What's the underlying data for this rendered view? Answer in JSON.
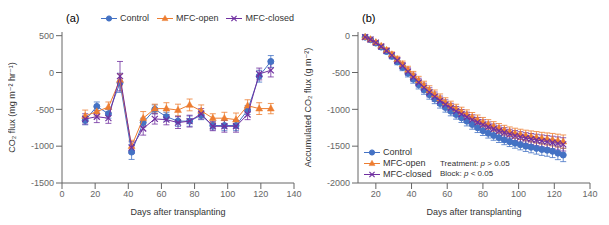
{
  "chart_data": [
    {
      "type": "line",
      "title": "(a)",
      "x_label": "Days after transplanting",
      "y_label": "CO₂ flux (mg m⁻² hr⁻¹)",
      "xlim": [
        0,
        140
      ],
      "ylim": [
        -1500,
        550
      ],
      "xticks": [
        0,
        20,
        40,
        60,
        80,
        100,
        120,
        140
      ],
      "yticks": [
        500,
        0,
        -500,
        -1000,
        -1500
      ],
      "grid": false,
      "legend": "upper right",
      "series": [
        {
          "name": "Control",
          "color": "#4472C4",
          "marker": "circle",
          "x": [
            14,
            21,
            28,
            35,
            42,
            49,
            56,
            63,
            70,
            77,
            84,
            91,
            98,
            105,
            112,
            119,
            126
          ],
          "values": [
            -650,
            -460,
            -560,
            -140,
            -1080,
            -680,
            -500,
            -600,
            -660,
            -660,
            -580,
            -720,
            -720,
            -720,
            -510,
            -50,
            150
          ],
          "errors": [
            60,
            60,
            60,
            130,
            100,
            60,
            60,
            60,
            70,
            70,
            60,
            60,
            70,
            70,
            60,
            80,
            80
          ]
        },
        {
          "name": "MFC-open",
          "color": "#ED7D31",
          "marker": "triangle",
          "x": [
            14,
            21,
            28,
            35,
            42,
            49,
            56,
            63,
            70,
            77,
            84,
            91,
            98,
            105,
            112,
            119,
            126
          ],
          "values": [
            -590,
            -530,
            -470,
            -100,
            -1000,
            -620,
            -490,
            -490,
            -510,
            -440,
            -520,
            -620,
            -620,
            -640,
            -450,
            -490,
            -490
          ],
          "errors": [
            80,
            60,
            70,
            80,
            80,
            90,
            60,
            80,
            80,
            80,
            80,
            60,
            80,
            90,
            80,
            80,
            70
          ]
        },
        {
          "name": "MFC-closed",
          "color": "#7030A0",
          "marker": "x",
          "x": [
            14,
            21,
            28,
            35,
            42,
            49,
            56,
            63,
            70,
            77,
            84,
            91,
            98,
            105,
            112,
            119,
            126
          ],
          "values": [
            -630,
            -600,
            -620,
            -50,
            -1020,
            -760,
            -630,
            -640,
            -680,
            -660,
            -560,
            -730,
            -730,
            -730,
            -570,
            -20,
            30
          ],
          "errors": [
            70,
            80,
            70,
            200,
            80,
            90,
            70,
            70,
            80,
            80,
            70,
            60,
            80,
            80,
            70,
            80,
            90
          ]
        }
      ]
    },
    {
      "type": "line",
      "title": "(b)",
      "x_label": "Days after transplanting",
      "y_label": "Accumulated CO₂ flux (g m⁻²)",
      "xlim": [
        10,
        140
      ],
      "ylim": [
        -2000,
        50
      ],
      "xticks": [
        20,
        40,
        60,
        80,
        100,
        120,
        140
      ],
      "yticks": [
        0,
        -500,
        -1000,
        -1500,
        -2000
      ],
      "grid": false,
      "legend": "lower left",
      "annotations": [
        "Treatment: p > 0.05",
        "Block: p < 0.05"
      ],
      "series": [
        {
          "name": "Control",
          "color": "#4472C4",
          "marker": "circle",
          "x": [
            14,
            17,
            20,
            23,
            26,
            29,
            32,
            35,
            38,
            41,
            44,
            47,
            50,
            53,
            56,
            59,
            62,
            65,
            68,
            71,
            74,
            77,
            80,
            83,
            86,
            89,
            92,
            95,
            98,
            101,
            104,
            107,
            110,
            113,
            116,
            119,
            122,
            125
          ],
          "values": [
            -20,
            -55,
            -100,
            -155,
            -215,
            -280,
            -355,
            -430,
            -510,
            -590,
            -665,
            -735,
            -800,
            -860,
            -920,
            -975,
            -1025,
            -1070,
            -1115,
            -1160,
            -1205,
            -1250,
            -1290,
            -1325,
            -1355,
            -1385,
            -1415,
            -1440,
            -1460,
            -1480,
            -1500,
            -1515,
            -1530,
            -1545,
            -1555,
            -1570,
            -1595,
            -1620
          ],
          "errors": [
            10,
            15,
            20,
            25,
            30,
            35,
            40,
            45,
            50,
            55,
            58,
            60,
            62,
            63,
            63,
            63,
            63,
            63,
            63,
            65,
            65,
            65,
            65,
            65,
            65,
            65,
            65,
            65,
            68,
            70,
            72,
            75,
            78,
            80,
            82,
            85,
            88,
            90
          ]
        },
        {
          "name": "MFC-open",
          "color": "#ED7D31",
          "marker": "triangle",
          "x": [
            14,
            17,
            20,
            23,
            26,
            29,
            32,
            35,
            38,
            41,
            44,
            47,
            50,
            53,
            56,
            59,
            62,
            65,
            68,
            71,
            74,
            77,
            80,
            83,
            86,
            89,
            92,
            95,
            98,
            101,
            104,
            107,
            110,
            113,
            116,
            119,
            122,
            125
          ],
          "values": [
            -18,
            -50,
            -90,
            -140,
            -195,
            -255,
            -320,
            -390,
            -465,
            -540,
            -610,
            -678,
            -742,
            -800,
            -854,
            -906,
            -952,
            -994,
            -1034,
            -1072,
            -1108,
            -1142,
            -1175,
            -1205,
            -1232,
            -1258,
            -1282,
            -1304,
            -1324,
            -1340,
            -1355,
            -1368,
            -1380,
            -1392,
            -1402,
            -1412,
            -1425,
            -1438
          ],
          "errors": [
            10,
            15,
            20,
            25,
            30,
            35,
            40,
            45,
            50,
            55,
            58,
            60,
            62,
            63,
            63,
            63,
            63,
            63,
            63,
            65,
            65,
            65,
            65,
            65,
            65,
            65,
            65,
            65,
            68,
            70,
            72,
            75,
            78,
            80,
            82,
            85,
            88,
            90
          ]
        },
        {
          "name": "MFC-closed",
          "color": "#7030A0",
          "marker": "x",
          "x": [
            14,
            17,
            20,
            23,
            26,
            29,
            32,
            35,
            38,
            41,
            44,
            47,
            50,
            53,
            56,
            59,
            62,
            65,
            68,
            71,
            74,
            77,
            80,
            83,
            86,
            89,
            92,
            95,
            98,
            101,
            104,
            107,
            110,
            113,
            116,
            119,
            122,
            125
          ],
          "values": [
            -19,
            -52,
            -95,
            -147,
            -205,
            -267,
            -337,
            -410,
            -487,
            -564,
            -636,
            -705,
            -769,
            -828,
            -883,
            -934,
            -981,
            -1024,
            -1065,
            -1104,
            -1140,
            -1175,
            -1207,
            -1237,
            -1264,
            -1290,
            -1314,
            -1336,
            -1356,
            -1373,
            -1389,
            -1403,
            -1416,
            -1428,
            -1439,
            -1450,
            -1463,
            -1476
          ],
          "errors": [
            10,
            15,
            20,
            25,
            30,
            35,
            40,
            45,
            50,
            55,
            58,
            60,
            62,
            63,
            63,
            63,
            63,
            63,
            63,
            65,
            65,
            65,
            65,
            65,
            65,
            65,
            65,
            65,
            68,
            70,
            72,
            75,
            78,
            80,
            82,
            85,
            88,
            90
          ]
        }
      ]
    }
  ]
}
